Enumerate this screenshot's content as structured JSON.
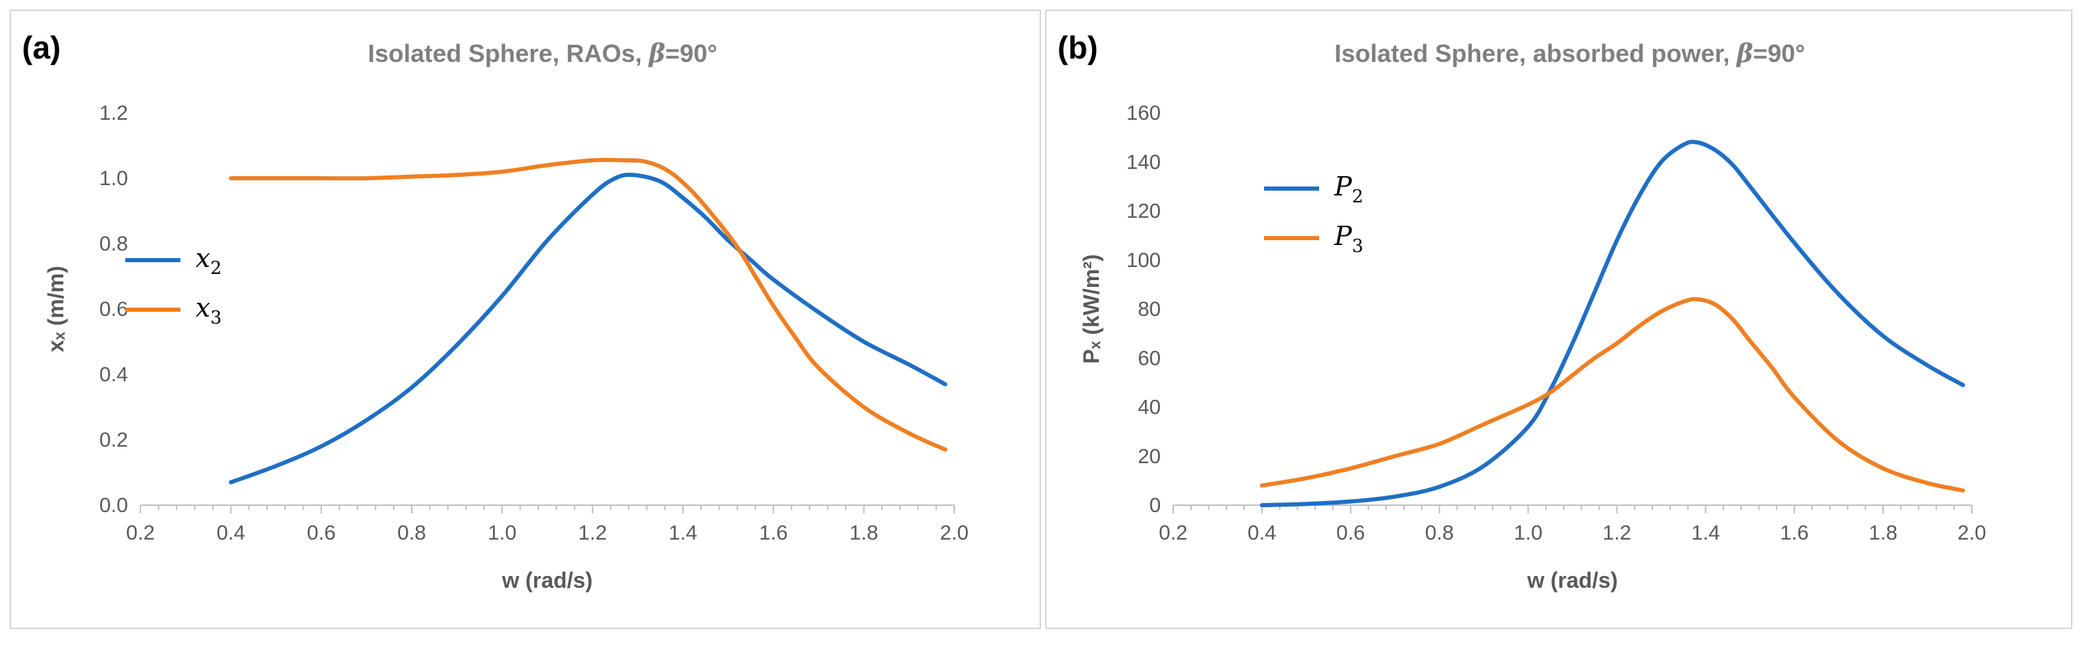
{
  "chart_data": [
    {
      "panel_label": "(a)",
      "type": "line",
      "title": "Isolated Sphere, RAOs, β=90°",
      "title_main": "Isolated Sphere, RAOs,",
      "title_beta": "β",
      "title_angle": "=90°",
      "xlabel": "w (rad/s)",
      "ylabel": "xₓ (m/m)",
      "xlim": [
        0.2,
        2.0
      ],
      "ylim": [
        0.0,
        1.2
      ],
      "xticks": [
        "0.2",
        "0.4",
        "0.6",
        "0.8",
        "1.0",
        "1.2",
        "1.4",
        "1.6",
        "1.8",
        "2.0"
      ],
      "yticks": [
        "0.0",
        "0.2",
        "0.4",
        "0.6",
        "0.8",
        "1.0",
        "1.2"
      ],
      "legend_position": "center-left",
      "series": [
        {
          "name": "x₂",
          "symbol": "x",
          "subscript": "2",
          "color": "#1f6fc5",
          "x": [
            0.4,
            0.5,
            0.6,
            0.7,
            0.8,
            0.9,
            1.0,
            1.1,
            1.2,
            1.25,
            1.29,
            1.35,
            1.4,
            1.45,
            1.5,
            1.55,
            1.6,
            1.7,
            1.8,
            1.9,
            1.98
          ],
          "y": [
            0.07,
            0.12,
            0.18,
            0.26,
            0.36,
            0.49,
            0.64,
            0.81,
            0.95,
            1.0,
            1.01,
            0.99,
            0.94,
            0.88,
            0.81,
            0.75,
            0.69,
            0.59,
            0.5,
            0.43,
            0.37
          ]
        },
        {
          "name": "x₃",
          "symbol": "x",
          "subscript": "3",
          "color": "#f07f22",
          "x": [
            0.4,
            0.5,
            0.6,
            0.7,
            0.8,
            0.9,
            1.0,
            1.1,
            1.2,
            1.27,
            1.32,
            1.37,
            1.42,
            1.47,
            1.52,
            1.56,
            1.6,
            1.65,
            1.7,
            1.8,
            1.9,
            1.98
          ],
          "y": [
            1.0,
            1.0,
            1.0,
            1.0,
            1.005,
            1.01,
            1.02,
            1.04,
            1.055,
            1.055,
            1.05,
            1.02,
            0.96,
            0.88,
            0.79,
            0.7,
            0.61,
            0.51,
            0.42,
            0.3,
            0.22,
            0.17
          ]
        }
      ]
    },
    {
      "panel_label": "(b)",
      "type": "line",
      "title": "Isolated Sphere, absorbed power, β=90°",
      "title_main": "Isolated Sphere, absorbed power,",
      "title_beta": "β",
      "title_angle": "=90°",
      "xlabel": "w (rad/s)",
      "ylabel": "Pₓ (kW/m²)",
      "xlim": [
        0.2,
        2.0
      ],
      "ylim": [
        0,
        160
      ],
      "xticks": [
        "0.2",
        "0.4",
        "0.6",
        "0.8",
        "1.0",
        "1.2",
        "1.4",
        "1.6",
        "1.8",
        "2.0"
      ],
      "yticks": [
        "0",
        "20",
        "40",
        "60",
        "80",
        "100",
        "120",
        "140",
        "160"
      ],
      "legend_position": "top-left",
      "series": [
        {
          "name": "P₂",
          "symbol": "P",
          "subscript": "2",
          "color": "#1f6fc5",
          "x": [
            0.4,
            0.5,
            0.6,
            0.7,
            0.8,
            0.9,
            1.0,
            1.05,
            1.1,
            1.15,
            1.2,
            1.25,
            1.3,
            1.35,
            1.38,
            1.42,
            1.46,
            1.5,
            1.6,
            1.7,
            1.8,
            1.9,
            1.98
          ],
          "y": [
            0,
            0.5,
            1.5,
            3.5,
            7.5,
            16,
            32,
            47,
            66,
            87,
            108,
            126,
            140,
            147,
            148,
            145,
            139,
            130,
            107,
            86,
            69,
            57,
            49
          ]
        },
        {
          "name": "P₃",
          "symbol": "P",
          "subscript": "3",
          "color": "#f07f22",
          "x": [
            0.4,
            0.5,
            0.6,
            0.7,
            0.8,
            0.9,
            1.0,
            1.05,
            1.1,
            1.15,
            1.2,
            1.25,
            1.3,
            1.35,
            1.38,
            1.42,
            1.46,
            1.5,
            1.55,
            1.6,
            1.7,
            1.8,
            1.9,
            1.98
          ],
          "y": [
            8,
            11,
            15,
            20,
            25,
            33,
            41,
            46,
            53,
            60,
            66,
            73,
            79,
            83,
            84,
            82,
            76,
            67,
            56,
            44,
            26,
            15,
            9,
            6
          ]
        }
      ]
    }
  ]
}
